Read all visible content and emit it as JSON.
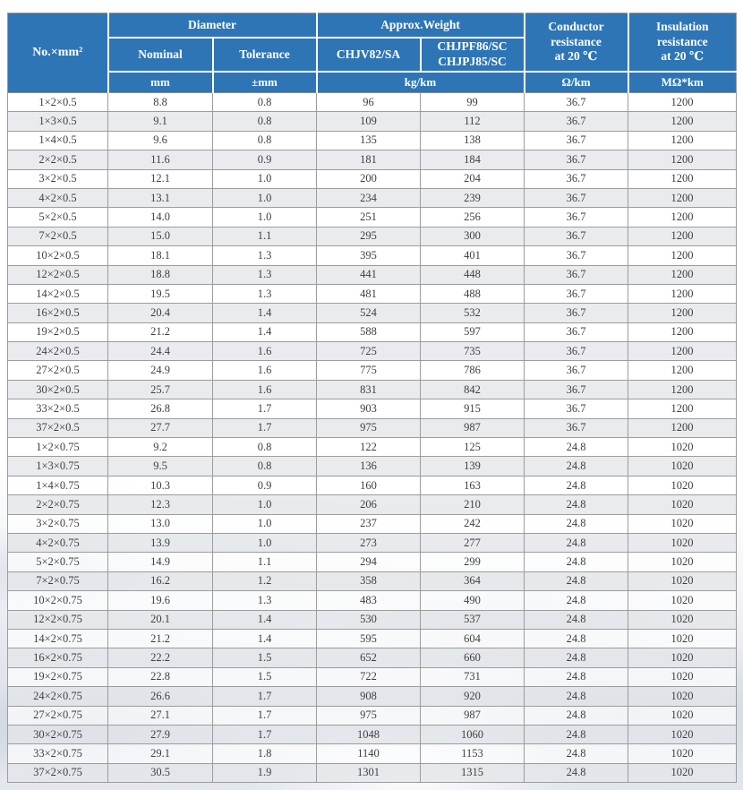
{
  "chart_data": {
    "type": "table",
    "header": {
      "no_col": "No.×mm²",
      "diameter_group": "Diameter",
      "nominal": "Nominal",
      "tolerance": "Tolerance",
      "weight_group": "Approx.Weight",
      "weight_a": "CHJV82/SA",
      "weight_b": "CHJPF86/SC\nCHJPJ85/SC",
      "conductor": "Conductor\nresistance\nat 20 ℃",
      "insulation": "Insulation\nresistance\nat 20 ℃",
      "units": {
        "nominal": "mm",
        "tolerance": "±mm",
        "weight": "kg/km",
        "conductor": "Ω/km",
        "insulation": "MΩ*km"
      }
    },
    "rows": [
      [
        "1×2×0.5",
        "8.8",
        "0.8",
        "96",
        "99",
        "36.7",
        "1200"
      ],
      [
        "1×3×0.5",
        "9.1",
        "0.8",
        "109",
        "112",
        "36.7",
        "1200"
      ],
      [
        "1×4×0.5",
        "9.6",
        "0.8",
        "135",
        "138",
        "36.7",
        "1200"
      ],
      [
        "2×2×0.5",
        "11.6",
        "0.9",
        "181",
        "184",
        "36.7",
        "1200"
      ],
      [
        "3×2×0.5",
        "12.1",
        "1.0",
        "200",
        "204",
        "36.7",
        "1200"
      ],
      [
        "4×2×0.5",
        "13.1",
        "1.0",
        "234",
        "239",
        "36.7",
        "1200"
      ],
      [
        "5×2×0.5",
        "14.0",
        "1.0",
        "251",
        "256",
        "36.7",
        "1200"
      ],
      [
        "7×2×0.5",
        "15.0",
        "1.1",
        "295",
        "300",
        "36.7",
        "1200"
      ],
      [
        "10×2×0.5",
        "18.1",
        "1.3",
        "395",
        "401",
        "36.7",
        "1200"
      ],
      [
        "12×2×0.5",
        "18.8",
        "1.3",
        "441",
        "448",
        "36.7",
        "1200"
      ],
      [
        "14×2×0.5",
        "19.5",
        "1.3",
        "481",
        "488",
        "36.7",
        "1200"
      ],
      [
        "16×2×0.5",
        "20.4",
        "1.4",
        "524",
        "532",
        "36.7",
        "1200"
      ],
      [
        "19×2×0.5",
        "21.2",
        "1.4",
        "588",
        "597",
        "36.7",
        "1200"
      ],
      [
        "24×2×0.5",
        "24.4",
        "1.6",
        "725",
        "735",
        "36.7",
        "1200"
      ],
      [
        "27×2×0.5",
        "24.9",
        "1.6",
        "775",
        "786",
        "36.7",
        "1200"
      ],
      [
        "30×2×0.5",
        "25.7",
        "1.6",
        "831",
        "842",
        "36.7",
        "1200"
      ],
      [
        "33×2×0.5",
        "26.8",
        "1.7",
        "903",
        "915",
        "36.7",
        "1200"
      ],
      [
        "37×2×0.5",
        "27.7",
        "1.7",
        "975",
        "987",
        "36.7",
        "1200"
      ],
      [
        "1×2×0.75",
        "9.2",
        "0.8",
        "122",
        "125",
        "24.8",
        "1020"
      ],
      [
        "1×3×0.75",
        "9.5",
        "0.8",
        "136",
        "139",
        "24.8",
        "1020"
      ],
      [
        "1×4×0.75",
        "10.3",
        "0.9",
        "160",
        "163",
        "24.8",
        "1020"
      ],
      [
        "2×2×0.75",
        "12.3",
        "1.0",
        "206",
        "210",
        "24.8",
        "1020"
      ],
      [
        "3×2×0.75",
        "13.0",
        "1.0",
        "237",
        "242",
        "24.8",
        "1020"
      ],
      [
        "4×2×0.75",
        "13.9",
        "1.0",
        "273",
        "277",
        "24.8",
        "1020"
      ],
      [
        "5×2×0.75",
        "14.9",
        "1.1",
        "294",
        "299",
        "24.8",
        "1020"
      ],
      [
        "7×2×0.75",
        "16.2",
        "1.2",
        "358",
        "364",
        "24.8",
        "1020"
      ],
      [
        "10×2×0.75",
        "19.6",
        "1.3",
        "483",
        "490",
        "24.8",
        "1020"
      ],
      [
        "12×2×0.75",
        "20.1",
        "1.4",
        "530",
        "537",
        "24.8",
        "1020"
      ],
      [
        "14×2×0.75",
        "21.2",
        "1.4",
        "595",
        "604",
        "24.8",
        "1020"
      ],
      [
        "16×2×0.75",
        "22.2",
        "1.5",
        "652",
        "660",
        "24.8",
        "1020"
      ],
      [
        "19×2×0.75",
        "22.8",
        "1.5",
        "722",
        "731",
        "24.8",
        "1020"
      ],
      [
        "24×2×0.75",
        "26.6",
        "1.7",
        "908",
        "920",
        "24.8",
        "1020"
      ],
      [
        "27×2×0.75",
        "27.1",
        "1.7",
        "975",
        "987",
        "24.8",
        "1020"
      ],
      [
        "30×2×0.75",
        "27.9",
        "1.7",
        "1048",
        "1060",
        "24.8",
        "1020"
      ],
      [
        "33×2×0.75",
        "29.1",
        "1.8",
        "1140",
        "1153",
        "24.8",
        "1020"
      ],
      [
        "37×2×0.75",
        "30.5",
        "1.9",
        "1301",
        "1315",
        "24.8",
        "1020"
      ]
    ]
  },
  "colors": {
    "header_bg": "#2e75b6",
    "header_text": "#ffffff",
    "row_alt_stripe": "#ebedf0",
    "grid_border": "#8c8c8c",
    "body_text": "#3f3f3f"
  }
}
